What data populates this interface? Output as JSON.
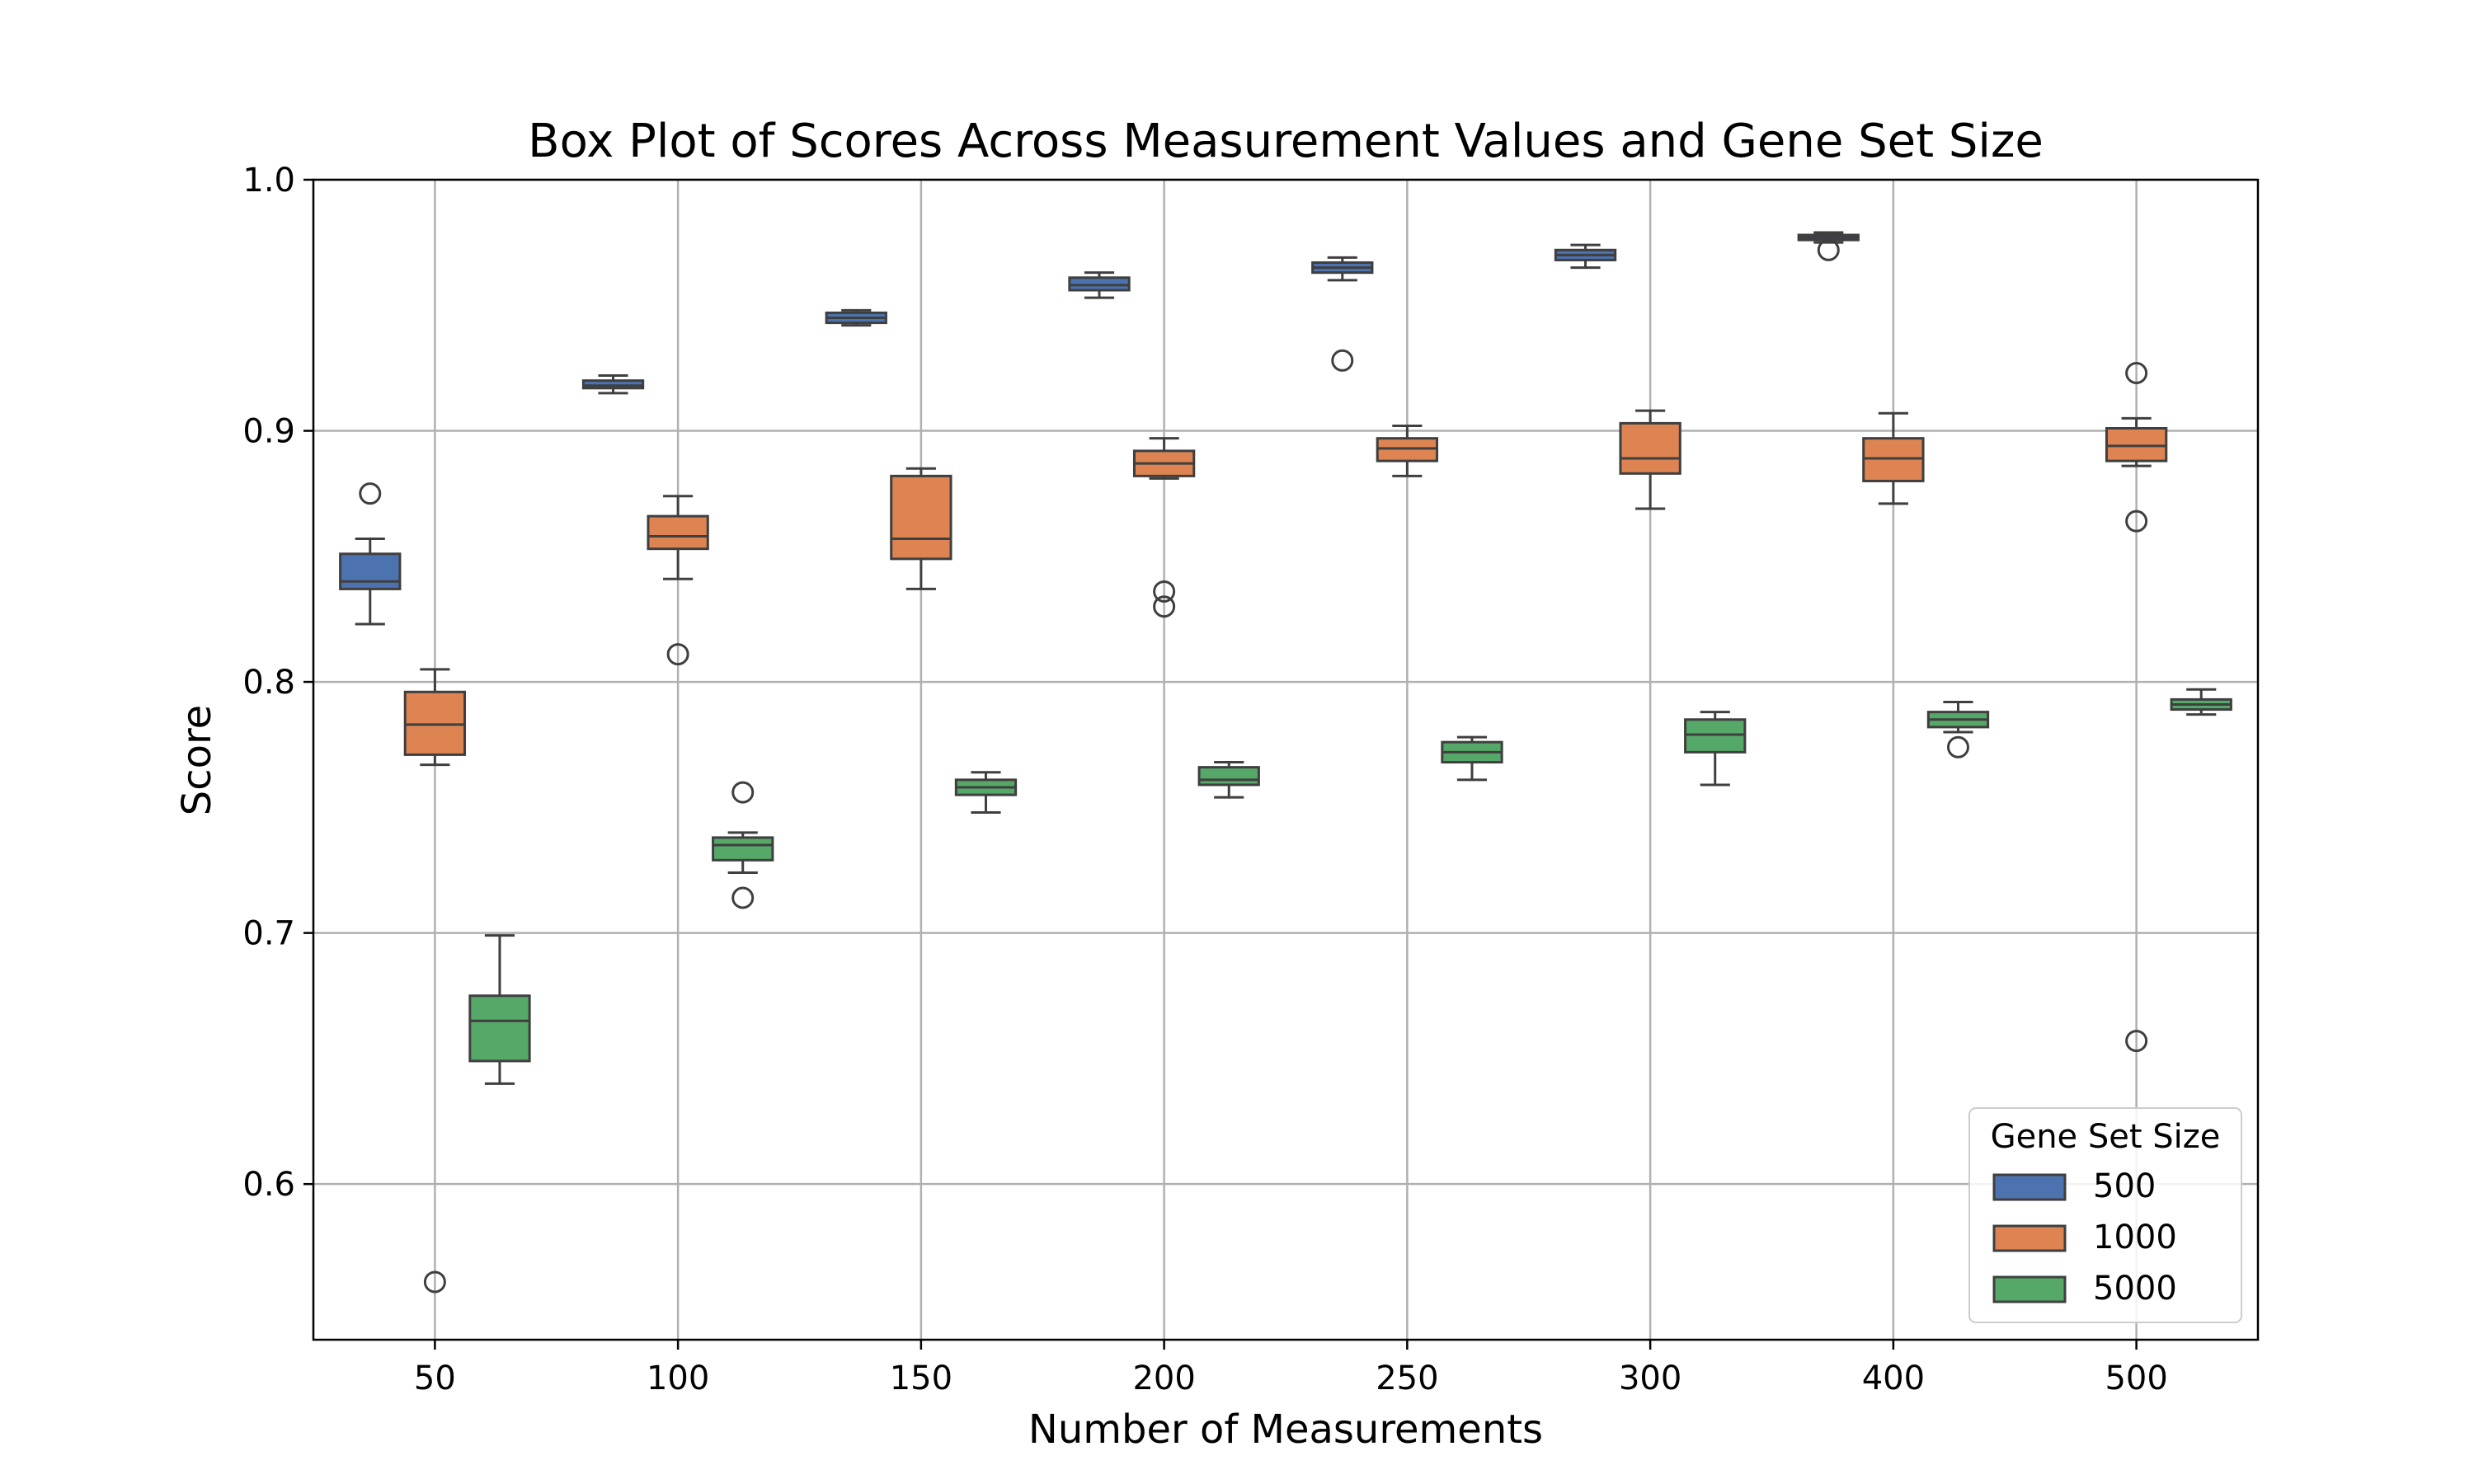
{
  "chart_data": {
    "type": "box",
    "title": "Box Plot of Scores Across Measurement Values and Gene Set Size",
    "xlabel": "Number of Measurements",
    "ylabel": "Score",
    "categories": [
      "50",
      "100",
      "150",
      "200",
      "250",
      "300",
      "400",
      "500"
    ],
    "ylim": [
      0.538,
      1.0
    ],
    "yticks": [
      0.6,
      0.7,
      0.8,
      0.9,
      1.0
    ],
    "ytick_labels": [
      "0.6",
      "0.7",
      "0.8",
      "0.9",
      "1.0"
    ],
    "grid": true,
    "legend": {
      "title": "Gene Set Size",
      "position": "lower right"
    },
    "series": [
      {
        "name": "500",
        "color": "#4c72b0",
        "boxes": [
          {
            "whisker_low": 0.823,
            "q1": 0.837,
            "median": 0.84,
            "q3": 0.851,
            "whisker_high": 0.857,
            "outliers": [
              0.875
            ]
          },
          {
            "whisker_low": 0.915,
            "q1": 0.917,
            "median": 0.918,
            "q3": 0.92,
            "whisker_high": 0.922,
            "outliers": []
          },
          {
            "whisker_low": 0.942,
            "q1": 0.943,
            "median": 0.945,
            "q3": 0.947,
            "whisker_high": 0.948,
            "outliers": []
          },
          {
            "whisker_low": 0.953,
            "q1": 0.956,
            "median": 0.958,
            "q3": 0.961,
            "whisker_high": 0.963,
            "outliers": []
          },
          {
            "whisker_low": 0.96,
            "q1": 0.963,
            "median": 0.965,
            "q3": 0.967,
            "whisker_high": 0.969,
            "outliers": [
              0.928
            ]
          },
          {
            "whisker_low": 0.965,
            "q1": 0.968,
            "median": 0.97,
            "q3": 0.972,
            "whisker_high": 0.974,
            "outliers": []
          },
          {
            "whisker_low": 0.975,
            "q1": 0.976,
            "median": 0.977,
            "q3": 0.978,
            "whisker_high": 0.979,
            "outliers": [
              0.972
            ]
          }
        ]
      },
      {
        "name": "1000",
        "color": "#dd8452",
        "boxes": [
          {
            "whisker_low": 0.767,
            "q1": 0.771,
            "median": 0.783,
            "q3": 0.796,
            "whisker_high": 0.805,
            "outliers": [
              0.561
            ]
          },
          {
            "whisker_low": 0.841,
            "q1": 0.853,
            "median": 0.858,
            "q3": 0.866,
            "whisker_high": 0.874,
            "outliers": [
              0.811
            ]
          },
          {
            "whisker_low": 0.837,
            "q1": 0.849,
            "median": 0.857,
            "q3": 0.882,
            "whisker_high": 0.885,
            "outliers": []
          },
          {
            "whisker_low": 0.881,
            "q1": 0.882,
            "median": 0.887,
            "q3": 0.892,
            "whisker_high": 0.897,
            "outliers": [
              0.836,
              0.83
            ]
          },
          {
            "whisker_low": 0.882,
            "q1": 0.888,
            "median": 0.893,
            "q3": 0.897,
            "whisker_high": 0.902,
            "outliers": []
          },
          {
            "whisker_low": 0.869,
            "q1": 0.883,
            "median": 0.889,
            "q3": 0.903,
            "whisker_high": 0.908,
            "outliers": []
          },
          {
            "whisker_low": 0.871,
            "q1": 0.88,
            "median": 0.889,
            "q3": 0.897,
            "whisker_high": 0.907,
            "outliers": []
          },
          {
            "whisker_low": 0.886,
            "q1": 0.888,
            "median": 0.894,
            "q3": 0.901,
            "whisker_high": 0.905,
            "outliers": [
              0.923,
              0.864,
              0.657
            ]
          }
        ]
      },
      {
        "name": "5000",
        "color": "#55a868",
        "boxes": [
          {
            "whisker_low": 0.64,
            "q1": 0.649,
            "median": 0.665,
            "q3": 0.675,
            "whisker_high": 0.699,
            "outliers": []
          },
          {
            "whisker_low": 0.724,
            "q1": 0.729,
            "median": 0.735,
            "q3": 0.738,
            "whisker_high": 0.74,
            "outliers": [
              0.756,
              0.714
            ]
          },
          {
            "whisker_low": 0.748,
            "q1": 0.755,
            "median": 0.758,
            "q3": 0.761,
            "whisker_high": 0.764,
            "outliers": []
          },
          {
            "whisker_low": 0.754,
            "q1": 0.759,
            "median": 0.761,
            "q3": 0.766,
            "whisker_high": 0.768,
            "outliers": []
          },
          {
            "whisker_low": 0.761,
            "q1": 0.768,
            "median": 0.772,
            "q3": 0.776,
            "whisker_high": 0.778,
            "outliers": []
          },
          {
            "whisker_low": 0.759,
            "q1": 0.772,
            "median": 0.779,
            "q3": 0.785,
            "whisker_high": 0.788,
            "outliers": []
          },
          {
            "whisker_low": 0.78,
            "q1": 0.782,
            "median": 0.785,
            "q3": 0.788,
            "whisker_high": 0.792,
            "outliers": [
              0.774
            ]
          },
          {
            "whisker_low": 0.787,
            "q1": 0.789,
            "median": 0.791,
            "q3": 0.793,
            "whisker_high": 0.797,
            "outliers": []
          }
        ]
      }
    ],
    "box_slots": {
      "500": [
        0,
        1,
        2,
        3,
        4,
        5,
        6
      ],
      "1000": [
        0,
        1,
        2,
        3,
        4,
        5,
        6,
        7
      ],
      "5000": [
        0,
        1,
        2,
        3,
        4,
        5,
        6,
        7
      ]
    }
  }
}
